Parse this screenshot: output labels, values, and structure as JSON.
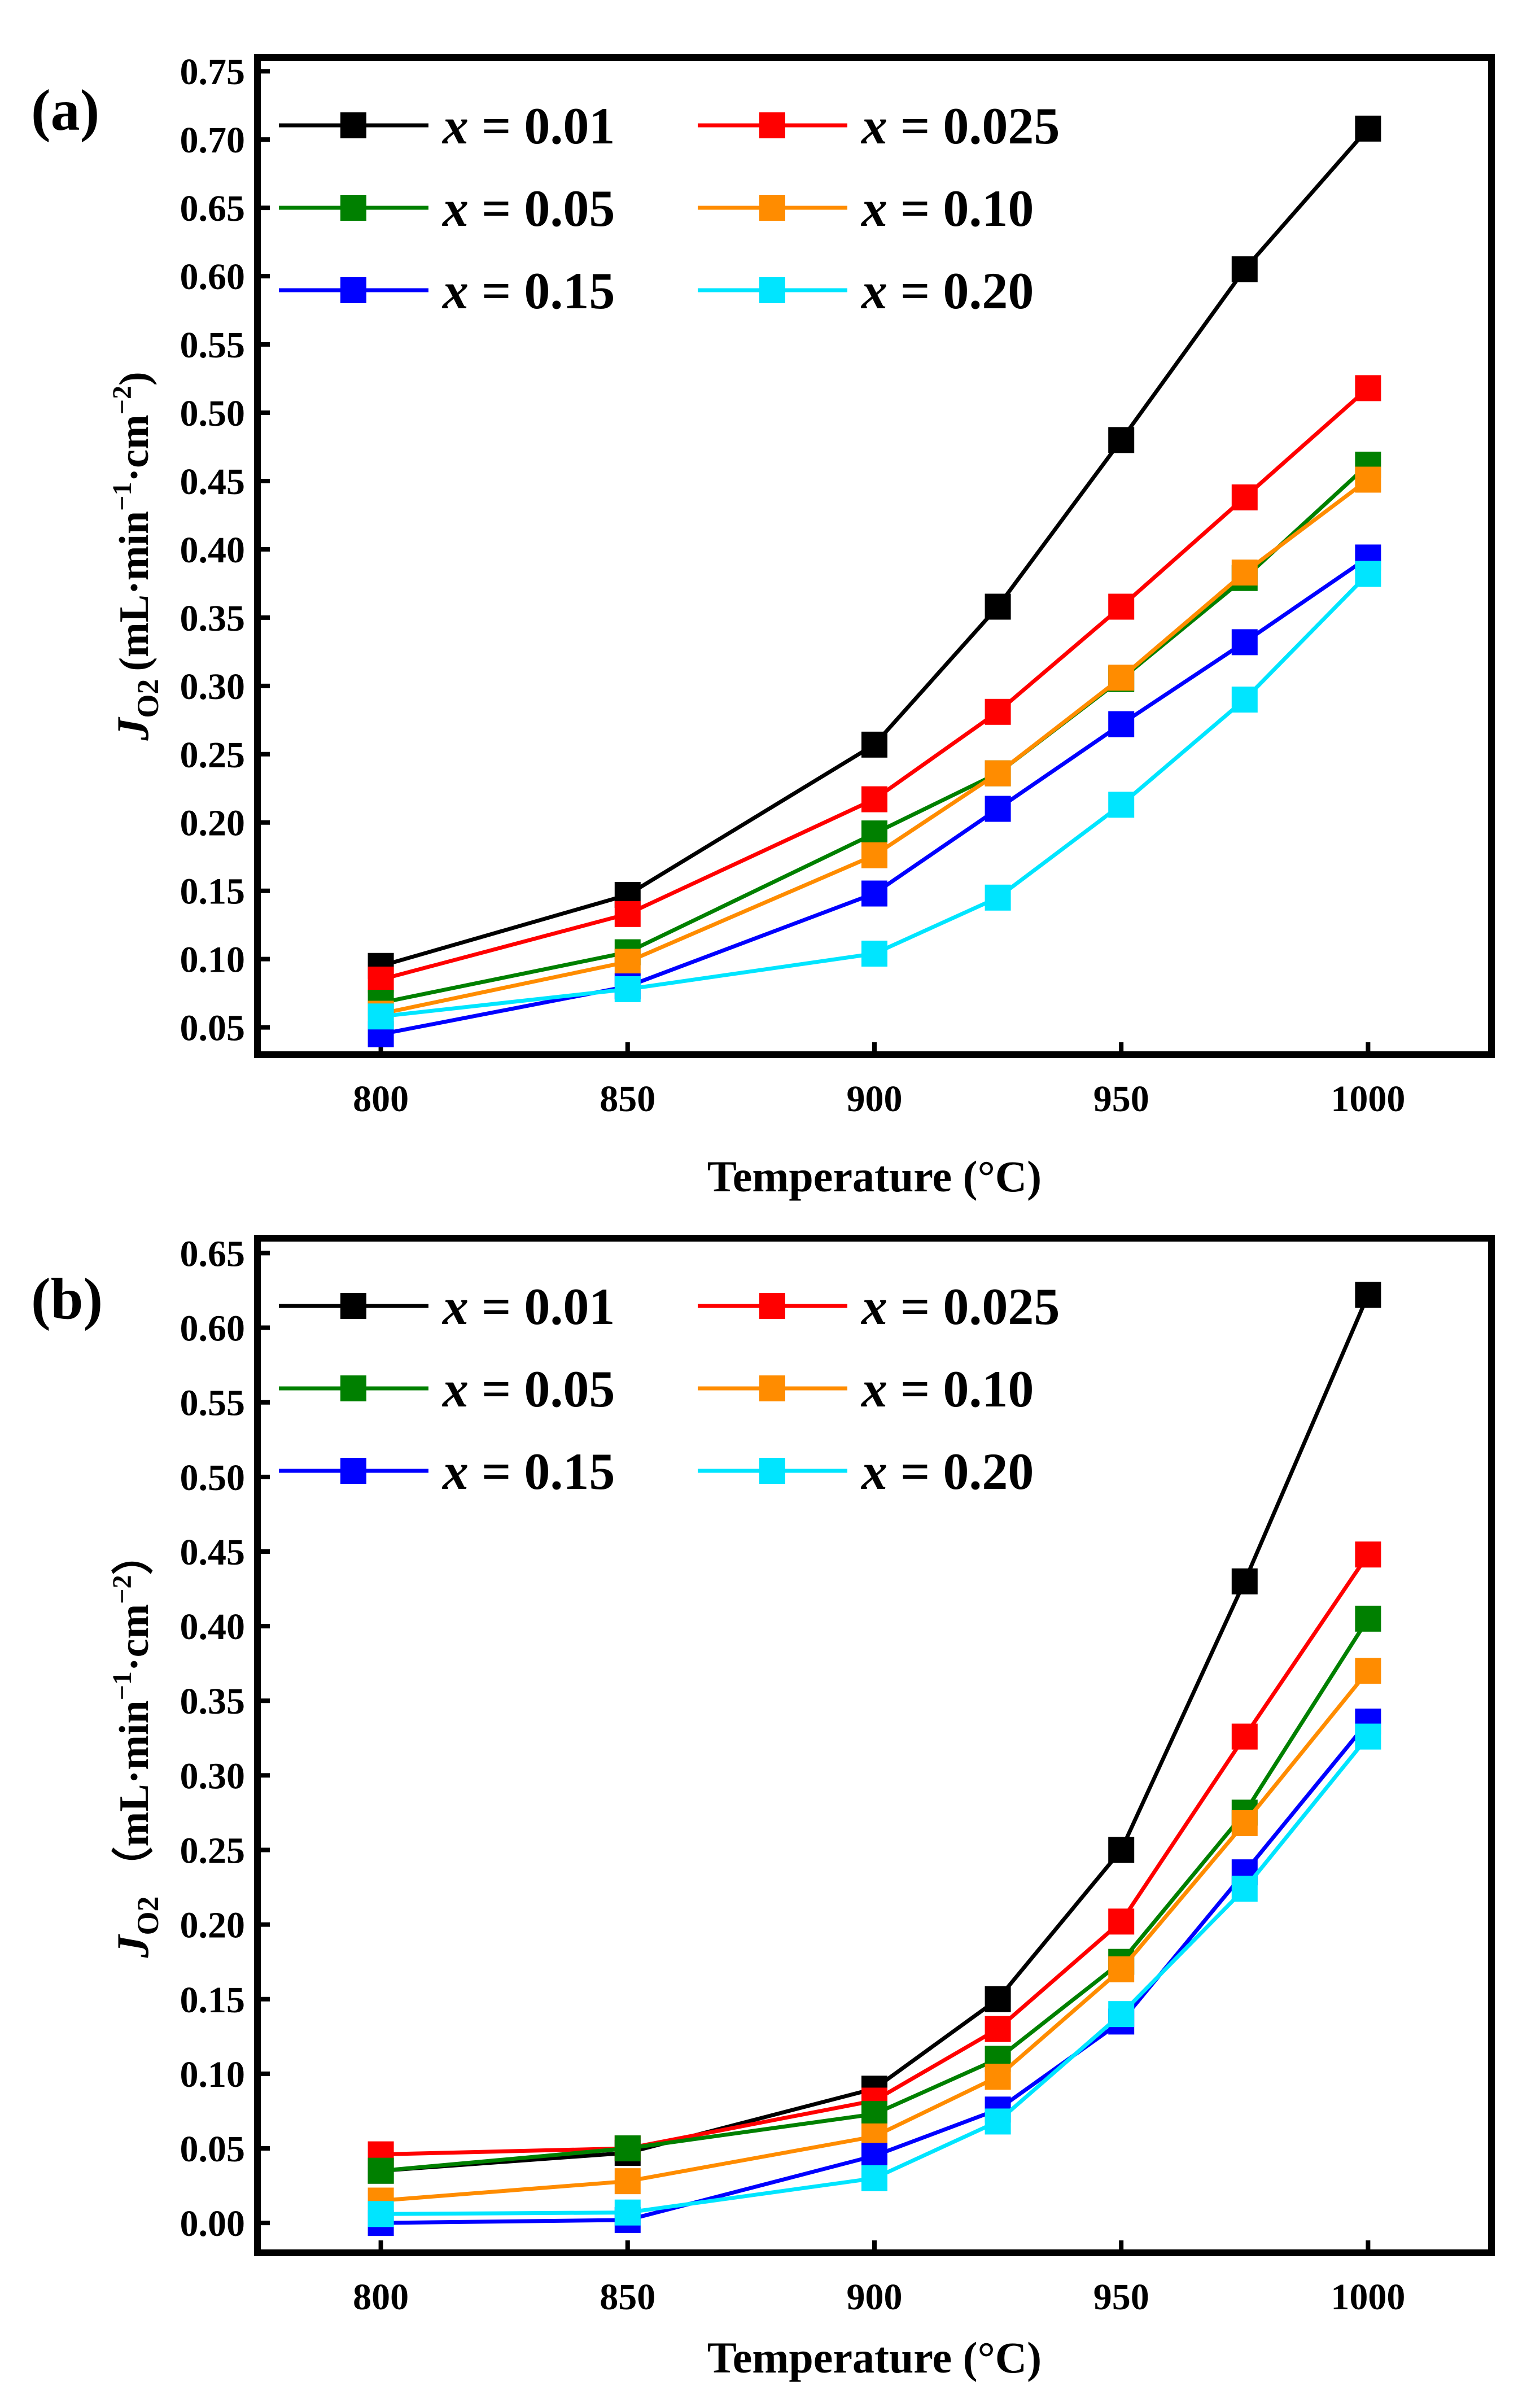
{
  "figure": {
    "panels": [
      {
        "letter": "(a)",
        "y_unit_text": "(mL·min",
        "y_unit_mid": "·cm",
        "y_unit_close": ")"
      },
      {
        "letter": "(b)",
        "y_unit_text": "（mL·min",
        "y_unit_mid": "·cm",
        "y_unit_close": "）"
      }
    ],
    "ylabel_symbol": "J",
    "ylabel_subscript": "O2",
    "ylabel_superscript": "−1",
    "ylabel_superscript2": "−2"
  },
  "chart_data": [
    {
      "type": "line",
      "panel": "(a)",
      "xlabel": "Temperature (°C)",
      "ylabel": "J O2 (mL·min−1·cm−2)",
      "x": [
        800,
        850,
        900,
        925,
        950,
        975,
        1000
      ],
      "xticks": [
        800,
        850,
        900,
        950,
        1000
      ],
      "xlim": [
        775,
        1025
      ],
      "ylim": [
        0.03,
        0.76
      ],
      "yticks": [
        "0.05",
        "0.10",
        "0.15",
        "0.20",
        "0.25",
        "0.30",
        "0.35",
        "0.40",
        "0.45",
        "0.50",
        "0.55",
        "0.60",
        "0.65",
        "0.70",
        "0.75"
      ],
      "legend_position": "top-left",
      "series": [
        {
          "name": "x = 0.01",
          "var": "x",
          "val": " = 0.01",
          "color": "#000000",
          "values": [
            0.095,
            0.147,
            0.257,
            0.358,
            0.48,
            0.605,
            0.708
          ]
        },
        {
          "name": "x = 0.025",
          "var": "x",
          "val": " = 0.025",
          "color": "#ff0000",
          "values": [
            0.085,
            0.133,
            0.217,
            0.281,
            0.358,
            0.438,
            0.518
          ]
        },
        {
          "name": "x = 0.05",
          "var": "x",
          "val": " = 0.05",
          "color": "#008000",
          "values": [
            0.068,
            0.105,
            0.192,
            0.236,
            0.305,
            0.379,
            0.462
          ]
        },
        {
          "name": "x = 0.10",
          "var": "x",
          "val": " = 0.10",
          "color": "#ff8c00",
          "values": [
            0.06,
            0.098,
            0.176,
            0.236,
            0.306,
            0.383,
            0.451
          ]
        },
        {
          "name": "x = 0.15",
          "var": "x",
          "val": " = 0.15",
          "color": "#0000ff",
          "values": [
            0.045,
            0.08,
            0.148,
            0.21,
            0.272,
            0.332,
            0.394
          ]
        },
        {
          "name": "x = 0.20",
          "var": "x",
          "val": " = 0.20",
          "color": "#00e5ff",
          "values": [
            0.058,
            0.078,
            0.104,
            0.145,
            0.213,
            0.29,
            0.382
          ]
        }
      ]
    },
    {
      "type": "line",
      "panel": "(b)",
      "xlabel": "Temperature (°C)",
      "ylabel": "J O2 （mL·min−1·cm−2）",
      "x": [
        800,
        850,
        900,
        925,
        950,
        975,
        1000
      ],
      "xticks": [
        800,
        850,
        900,
        950,
        1000
      ],
      "xlim": [
        775,
        1025
      ],
      "ylim": [
        -0.02,
        0.66
      ],
      "yticks": [
        "0.00",
        "0.05",
        "0.10",
        "0.15",
        "0.20",
        "0.25",
        "0.30",
        "0.35",
        "0.40",
        "0.45",
        "0.50",
        "0.55",
        "0.60",
        "0.65"
      ],
      "legend_position": "top-left",
      "series": [
        {
          "name": "x = 0.01",
          "var": "x",
          "val": " = 0.01",
          "color": "#000000",
          "values": [
            0.035,
            0.047,
            0.09,
            0.15,
            0.25,
            0.43,
            0.622
          ]
        },
        {
          "name": "x = 0.025",
          "var": "x",
          "val": " = 0.025",
          "color": "#ff0000",
          "values": [
            0.046,
            0.05,
            0.082,
            0.13,
            0.202,
            0.326,
            0.448
          ]
        },
        {
          "name": "x = 0.05",
          "var": "x",
          "val": " = 0.05",
          "color": "#008000",
          "values": [
            0.035,
            0.05,
            0.073,
            0.11,
            0.175,
            0.275,
            0.405
          ]
        },
        {
          "name": "x = 0.10",
          "var": "x",
          "val": " = 0.10",
          "color": "#ff8c00",
          "values": [
            0.015,
            0.028,
            0.058,
            0.098,
            0.17,
            0.268,
            0.37
          ]
        },
        {
          "name": "x = 0.15",
          "var": "x",
          "val": " = 0.15",
          "color": "#0000ff",
          "values": [
            0.0,
            0.002,
            0.045,
            0.076,
            0.135,
            0.235,
            0.336
          ]
        },
        {
          "name": "x = 0.20",
          "var": "x",
          "val": " = 0.20",
          "color": "#00e5ff",
          "values": [
            0.006,
            0.007,
            0.03,
            0.068,
            0.14,
            0.224,
            0.326
          ]
        }
      ]
    }
  ]
}
